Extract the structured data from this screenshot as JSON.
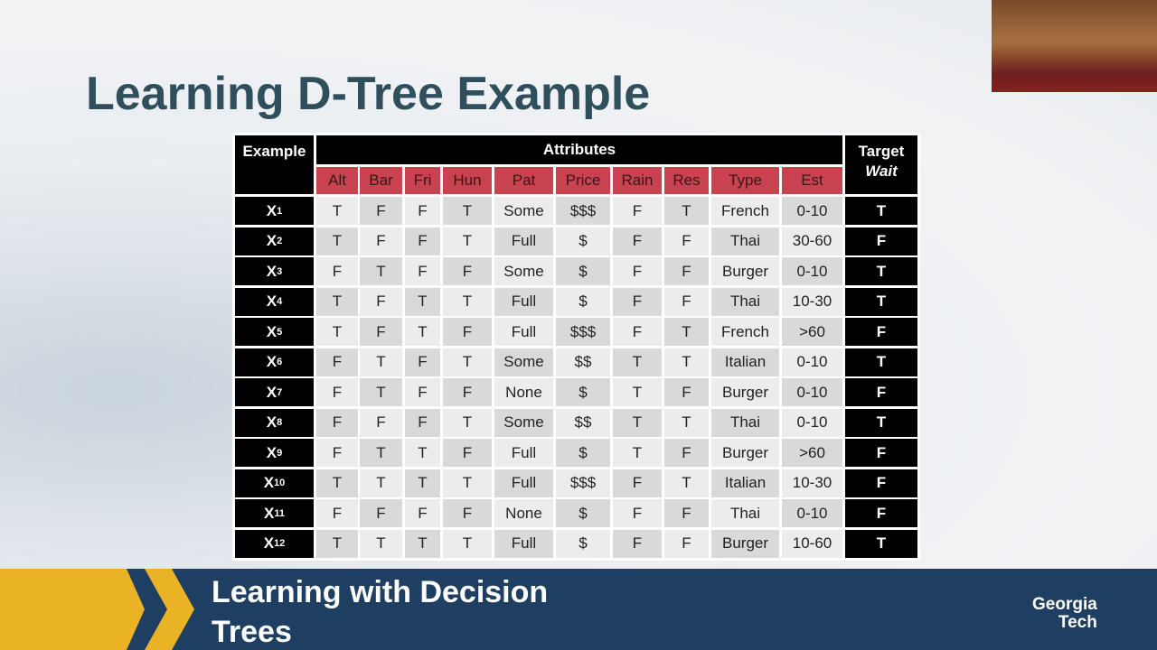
{
  "title": "Learning D-Tree Example",
  "table": {
    "example_header": "Example",
    "attributes_header": "Attributes",
    "target_header": "Target",
    "target_name": "Wait",
    "columns": [
      "Alt",
      "Bar",
      "Fri",
      "Hun",
      "Pat",
      "Price",
      "Rain",
      "Res",
      "Type",
      "Est"
    ],
    "rows": [
      {
        "letter": "X",
        "sub": "1",
        "cells": [
          "T",
          "F",
          "F",
          "T",
          "Some",
          "$$$",
          "F",
          "T",
          "French",
          "0-10"
        ],
        "target": "T"
      },
      {
        "letter": "X",
        "sub": "2",
        "cells": [
          "T",
          "F",
          "F",
          "T",
          "Full",
          "$",
          "F",
          "F",
          "Thai",
          "30-60"
        ],
        "target": "F"
      },
      {
        "letter": "X",
        "sub": "3",
        "cells": [
          "F",
          "T",
          "F",
          "F",
          "Some",
          "$",
          "F",
          "F",
          "Burger",
          "0-10"
        ],
        "target": "T"
      },
      {
        "letter": "X",
        "sub": "4",
        "cells": [
          "T",
          "F",
          "T",
          "T",
          "Full",
          "$",
          "F",
          "F",
          "Thai",
          "10-30"
        ],
        "target": "T"
      },
      {
        "letter": "X",
        "sub": "5",
        "cells": [
          "T",
          "F",
          "T",
          "F",
          "Full",
          "$$$",
          "F",
          "T",
          "French",
          ">60"
        ],
        "target": "F"
      },
      {
        "letter": "X",
        "sub": "6",
        "cells": [
          "F",
          "T",
          "F",
          "T",
          "Some",
          "$$",
          "T",
          "T",
          "Italian",
          "0-10"
        ],
        "target": "T"
      },
      {
        "letter": "X",
        "sub": "7",
        "cells": [
          "F",
          "T",
          "F",
          "F",
          "None",
          "$",
          "T",
          "F",
          "Burger",
          "0-10"
        ],
        "target": "F"
      },
      {
        "letter": "X",
        "sub": "8",
        "cells": [
          "F",
          "F",
          "F",
          "T",
          "Some",
          "$$",
          "T",
          "T",
          "Thai",
          "0-10"
        ],
        "target": "T"
      },
      {
        "letter": "X",
        "sub": "9",
        "cells": [
          "F",
          "T",
          "T",
          "F",
          "Full",
          "$",
          "T",
          "F",
          "Burger",
          ">60"
        ],
        "target": "F"
      },
      {
        "letter": "X",
        "sub": "10",
        "cells": [
          "T",
          "T",
          "T",
          "T",
          "Full",
          "$$$",
          "F",
          "T",
          "Italian",
          "10-30"
        ],
        "target": "F"
      },
      {
        "letter": "X",
        "sub": "11",
        "cells": [
          "F",
          "F",
          "F",
          "F",
          "None",
          "$",
          "F",
          "F",
          "Thai",
          "0-10"
        ],
        "target": "F"
      },
      {
        "letter": "X",
        "sub": "12",
        "cells": [
          "T",
          "T",
          "T",
          "T",
          "Full",
          "$",
          "F",
          "F",
          "Burger",
          "10-60"
        ],
        "target": "T"
      }
    ]
  },
  "footer": {
    "title": "Learning with Decision Trees",
    "logo": [
      "Georgia",
      "Tech"
    ]
  }
}
